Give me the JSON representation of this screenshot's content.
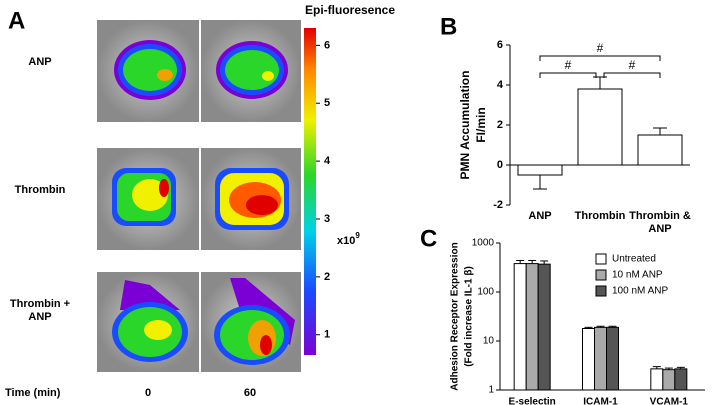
{
  "image_panel": {
    "panel": "A",
    "title": "Epi-fluoresence",
    "colorbar_ticks": [
      1,
      2,
      3,
      4,
      5,
      6
    ],
    "colorbar_lim": [
      0.65,
      6.3
    ],
    "multiplier": "x10",
    "exponent": "9",
    "rows": [
      "ANP",
      "Thrombin",
      "Thrombin + ANP"
    ],
    "time_label": "Time (min)",
    "times": [
      0,
      60
    ]
  },
  "chart_data": [
    {
      "type": "bar",
      "panel": "B",
      "ylabel": "PMN Accumulation",
      "yunit": "FI/min",
      "categories": [
        "ANP",
        "Thrombin",
        "Thrombin & ANP"
      ],
      "values": [
        -0.5,
        3.8,
        1.5
      ],
      "errors": [
        0.7,
        0.6,
        0.35
      ],
      "color": "#ffffff",
      "ylim": [
        -2,
        6
      ],
      "yticks": [
        -2,
        0,
        2,
        4,
        6
      ],
      "annotations": [
        "#",
        "#",
        "#"
      ]
    },
    {
      "type": "grouped_bar",
      "panel": "C",
      "ylabel": "Adhesion Receptor Expression",
      "yunit": "(Fold increase IL-1 β)",
      "log_scale": true,
      "categories": [
        "E-selectin",
        "ICAM-1",
        "VCAM-1"
      ],
      "series": [
        {
          "name": "Untreated",
          "color": "#ffffff",
          "values": [
            380,
            18,
            2.7
          ],
          "errors": [
            60,
            1,
            0.3
          ]
        },
        {
          "name": "10 nM ANP",
          "color": "#aaaaaa",
          "values": [
            380,
            19,
            2.6
          ],
          "errors": [
            60,
            1,
            0.2
          ]
        },
        {
          "name": "100 nM ANP",
          "color": "#555555",
          "values": [
            370,
            19,
            2.7
          ],
          "errors": [
            60,
            1,
            0.2
          ]
        }
      ],
      "ylim": [
        1,
        1000
      ],
      "yticks": [
        1,
        10,
        100,
        1000
      ],
      "legend": "upper right"
    }
  ]
}
